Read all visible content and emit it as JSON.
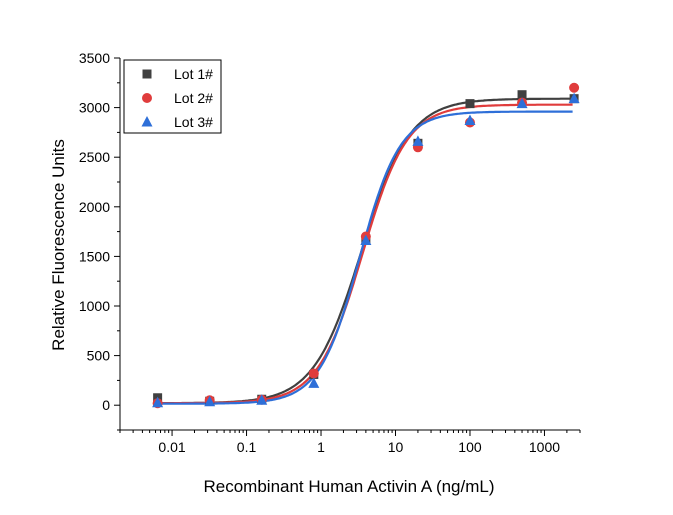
{
  "chart_data": {
    "type": "scatter",
    "title": "",
    "xlabel": "Recombinant Human Activin A (ng/mL)",
    "ylabel": "Relative Fluorescence Units",
    "xscale": "log",
    "xlim": [
      0.002,
      3000
    ],
    "ylim": [
      -250,
      3500
    ],
    "xticks": [
      0.01,
      0.1,
      1,
      10,
      100,
      1000
    ],
    "xtick_labels": [
      "0.01",
      "0.1",
      "1",
      "10",
      "100",
      "1000"
    ],
    "yticks": [
      0,
      500,
      1000,
      1500,
      2000,
      2500,
      3000,
      3500
    ],
    "ytick_labels": [
      "0",
      "500",
      "1000",
      "1500",
      "2000",
      "2500",
      "3000",
      "3500"
    ],
    "grid": false,
    "legend_position": "top-left",
    "x": [
      0.0064,
      0.032,
      0.16,
      0.8,
      4,
      20,
      100,
      500,
      2500
    ],
    "series": [
      {
        "name": "Lot 1#",
        "marker": "square",
        "color": "#404040",
        "values": [
          75,
          40,
          60,
          310,
          1670,
          2640,
          3040,
          3130,
          3090
        ],
        "fit": {
          "bottom": 20,
          "top": 3090,
          "ec50": 3.5,
          "hill": 1.35
        }
      },
      {
        "name": "Lot 2#",
        "marker": "circle",
        "color": "#e03c3c",
        "values": [
          20,
          50,
          55,
          320,
          1700,
          2600,
          2850,
          3050,
          3200
        ],
        "fit": {
          "bottom": 20,
          "top": 3030,
          "ec50": 3.6,
          "hill": 1.45
        }
      },
      {
        "name": "Lot 3#",
        "marker": "triangle",
        "color": "#2e6fd8",
        "values": [
          25,
          35,
          50,
          220,
          1660,
          2660,
          2870,
          3040,
          3090
        ],
        "fit": {
          "bottom": 15,
          "top": 2960,
          "ec50": 3.3,
          "hill": 1.6
        }
      }
    ]
  }
}
